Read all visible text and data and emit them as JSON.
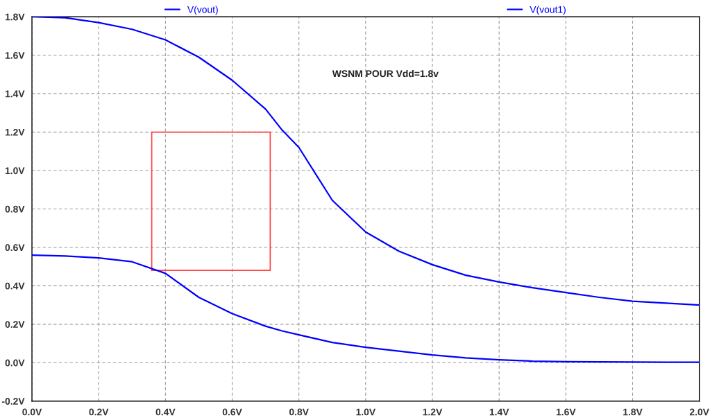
{
  "chart_data": {
    "type": "line",
    "x": [
      0,
      0.1,
      0.2,
      0.3,
      0.4,
      0.5,
      0.6,
      0.7,
      0.75,
      0.8,
      0.9,
      1.0,
      1.1,
      1.2,
      1.3,
      1.4,
      1.5,
      1.6,
      1.7,
      1.8,
      1.9,
      2.0
    ],
    "series": [
      {
        "name": "V(vout)",
        "color": "#0000ff",
        "values": [
          1.8,
          1.795,
          1.77,
          1.735,
          1.68,
          1.59,
          1.47,
          1.32,
          1.21,
          1.12,
          0.845,
          0.68,
          0.58,
          0.51,
          0.455,
          0.42,
          0.39,
          0.365,
          0.34,
          0.32,
          0.31,
          0.3
        ]
      },
      {
        "name": "V(vout1)",
        "color": "#0000ff",
        "values": [
          0.56,
          0.555,
          0.545,
          0.525,
          0.465,
          0.34,
          0.255,
          0.19,
          0.165,
          0.145,
          0.105,
          0.08,
          0.06,
          0.04,
          0.025,
          0.015,
          0.008,
          0.005,
          0.004,
          0.003,
          0.002,
          0.002
        ]
      }
    ],
    "annotations": [
      "WSNM POUR Vdd=1.8v"
    ],
    "xlim": [
      0,
      2.0
    ],
    "xticks": [
      {
        "value": 0,
        "label": "0.0V"
      },
      {
        "value": 0.2,
        "label": "0.2V"
      },
      {
        "value": 0.4,
        "label": "0.4V"
      },
      {
        "value": 0.6,
        "label": "0.6V"
      },
      {
        "value": 0.8,
        "label": "0.8V"
      },
      {
        "value": 1.0,
        "label": "1.0V"
      },
      {
        "value": 1.2,
        "label": "1.2V"
      },
      {
        "value": 1.4,
        "label": "1.4V"
      },
      {
        "value": 1.6,
        "label": "1.6V"
      },
      {
        "value": 1.8,
        "label": "1.8V"
      },
      {
        "value": 2.0,
        "label": "2.0V"
      }
    ],
    "ylim": [
      -0.2,
      1.8
    ],
    "yticks": [
      {
        "value": -0.2,
        "label": "-0.2V"
      },
      {
        "value": 0,
        "label": "0.0V"
      },
      {
        "value": 0.2,
        "label": "0.2V"
      },
      {
        "value": 0.4,
        "label": "0.4V"
      },
      {
        "value": 0.6,
        "label": "0.6V"
      },
      {
        "value": 0.8,
        "label": "0.8V"
      },
      {
        "value": 1.0,
        "label": "1.0V"
      },
      {
        "value": 1.2,
        "label": "1.2V"
      },
      {
        "value": 1.4,
        "label": "1.4V"
      },
      {
        "value": 1.6,
        "label": "1.6V"
      },
      {
        "value": 1.8,
        "label": "1.8V"
      }
    ],
    "grid": true,
    "legend": "top",
    "marker": "none",
    "line_style": "solid"
  }
}
